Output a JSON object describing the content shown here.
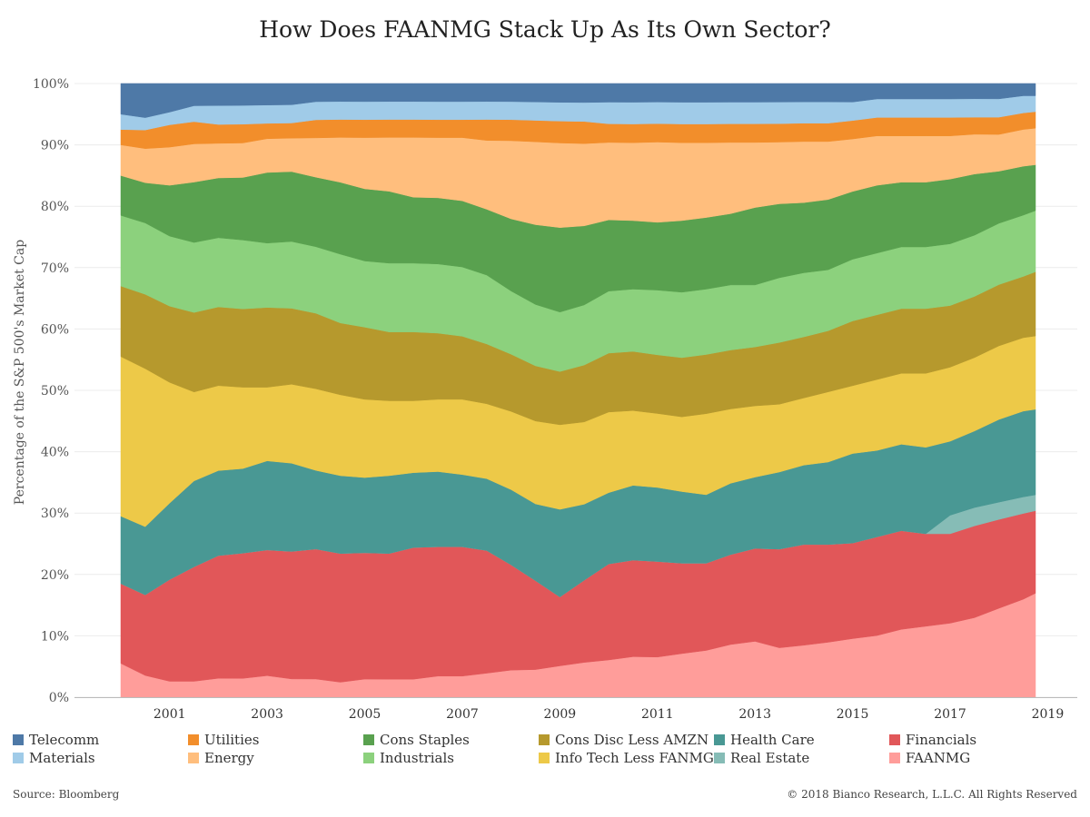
{
  "chart_data": {
    "type": "area",
    "stacked": "percent",
    "title": "How Does FAANMG Stack Up As Its Own Sector?",
    "ylabel": "Percentage of the S&P 500's Market Cap",
    "xlabel": "",
    "ylim": [
      0,
      100
    ],
    "y_ticks": [
      "0%",
      "10%",
      "20%",
      "30%",
      "40%",
      "50%",
      "60%",
      "70%",
      "80%",
      "90%",
      "100%"
    ],
    "x_ticks": [
      "2001",
      "2003",
      "2005",
      "2007",
      "2009",
      "2011",
      "2013",
      "2015",
      "2017",
      "2019"
    ],
    "xlim": [
      2000.0,
      2019.0
    ],
    "grid": true,
    "legend_position": "bottom",
    "x": [
      2000.0,
      2000.5,
      2001.0,
      2001.5,
      2002.0,
      2002.5,
      2003.0,
      2003.5,
      2004.0,
      2004.5,
      2005.0,
      2005.5,
      2006.0,
      2006.5,
      2007.0,
      2007.5,
      2008.0,
      2008.5,
      2009.0,
      2009.5,
      2010.0,
      2010.5,
      2011.0,
      2011.5,
      2012.0,
      2012.5,
      2013.0,
      2013.5,
      2014.0,
      2014.5,
      2015.0,
      2015.5,
      2016.0,
      2016.5,
      2017.0,
      2017.5,
      2018.0,
      2018.5,
      2018.75
    ],
    "series": [
      {
        "name": "FAANMG",
        "color": "#ff9d9a",
        "values": [
          5.5,
          3.5,
          2.5,
          2.5,
          3.0,
          3.0,
          3.5,
          3.0,
          3.0,
          2.5,
          3.0,
          3.0,
          3.0,
          3.5,
          3.5,
          4.0,
          4.5,
          4.5,
          5.0,
          5.5,
          6.0,
          6.5,
          6.5,
          7.0,
          7.5,
          8.5,
          9.0,
          8.0,
          8.5,
          9.0,
          9.5,
          10.0,
          11.0,
          11.5,
          12.0,
          13.0,
          14.5,
          16.0,
          17.0
        ]
      },
      {
        "name": "Financials",
        "color": "#e15759",
        "values": [
          13.0,
          13.0,
          16.0,
          18.0,
          19.5,
          20.0,
          20.5,
          21.0,
          21.5,
          21.5,
          21.0,
          21.0,
          22.0,
          21.5,
          21.5,
          20.5,
          17.5,
          14.5,
          11.0,
          13.0,
          15.5,
          15.5,
          15.5,
          14.5,
          14.0,
          14.5,
          15.0,
          16.0,
          16.5,
          16.0,
          15.5,
          16.0,
          16.0,
          15.0,
          14.5,
          15.0,
          14.5,
          14.0,
          13.5
        ]
      },
      {
        "name": "Real Estate",
        "color": "#86bcb6",
        "values": [
          0.0,
          0.0,
          0.0,
          0.0,
          0.0,
          0.0,
          0.0,
          0.0,
          0.0,
          0.0,
          0.0,
          0.0,
          0.0,
          0.0,
          0.0,
          0.0,
          0.0,
          0.0,
          0.0,
          0.0,
          0.0,
          0.0,
          0.0,
          0.0,
          0.0,
          0.0,
          0.0,
          0.0,
          0.0,
          0.0,
          0.0,
          0.0,
          0.0,
          0.0,
          3.0,
          3.0,
          2.8,
          2.7,
          2.6
        ]
      },
      {
        "name": "Health Care",
        "color": "#499894",
        "values": [
          11.0,
          11.0,
          12.0,
          13.5,
          13.5,
          13.5,
          14.5,
          14.5,
          13.0,
          13.0,
          12.5,
          13.0,
          12.5,
          12.5,
          12.0,
          12.0,
          12.5,
          12.5,
          14.0,
          12.0,
          11.5,
          12.0,
          12.0,
          11.5,
          11.0,
          11.5,
          11.5,
          12.5,
          13.0,
          13.5,
          14.5,
          14.0,
          14.0,
          14.0,
          12.0,
          12.5,
          13.5,
          14.0,
          14.0
        ]
      },
      {
        "name": "Info Tech Less FANMG",
        "color": "#edc948",
        "values": [
          26.0,
          25.5,
          19.0,
          14.0,
          13.5,
          13.0,
          12.0,
          13.0,
          13.5,
          13.5,
          13.0,
          12.5,
          12.0,
          12.0,
          12.5,
          12.5,
          13.0,
          13.5,
          13.5,
          13.0,
          13.0,
          12.0,
          12.0,
          12.0,
          13.0,
          12.0,
          11.5,
          11.0,
          11.0,
          11.5,
          11.0,
          11.5,
          11.5,
          12.0,
          12.0,
          12.0,
          12.0,
          12.0,
          12.0
        ]
      },
      {
        "name": "Cons Disc Less AMZN",
        "color": "#b6992d",
        "values": [
          11.5,
          12.0,
          12.0,
          12.5,
          12.5,
          12.5,
          13.0,
          12.5,
          12.5,
          12.0,
          12.0,
          11.5,
          11.5,
          11.0,
          10.5,
          10.0,
          9.5,
          9.0,
          8.5,
          9.0,
          9.5,
          9.5,
          9.5,
          9.5,
          9.5,
          9.5,
          9.5,
          10.0,
          10.0,
          10.0,
          10.5,
          10.5,
          10.5,
          10.5,
          10.0,
          10.0,
          10.0,
          10.0,
          10.5
        ]
      },
      {
        "name": "Industrials",
        "color": "#8cd17d",
        "values": [
          11.5,
          11.5,
          11.0,
          11.0,
          11.0,
          11.0,
          10.5,
          11.0,
          11.0,
          11.5,
          11.0,
          11.5,
          11.5,
          11.5,
          11.5,
          11.5,
          10.5,
          10.0,
          9.5,
          9.5,
          10.0,
          10.0,
          10.5,
          10.5,
          10.5,
          10.5,
          10.0,
          10.5,
          10.5,
          10.0,
          10.0,
          10.0,
          10.0,
          10.0,
          10.0,
          10.0,
          10.0,
          10.0,
          10.0
        ]
      },
      {
        "name": "Cons Staples",
        "color": "#59a14f",
        "values": [
          6.5,
          6.5,
          8.0,
          9.5,
          9.5,
          10.0,
          11.5,
          11.5,
          11.5,
          12.0,
          12.0,
          12.0,
          11.0,
          11.0,
          11.0,
          11.0,
          12.0,
          13.0,
          13.5,
          12.5,
          11.5,
          11.0,
          11.0,
          11.5,
          11.5,
          11.5,
          12.5,
          12.0,
          11.5,
          11.5,
          11.0,
          11.0,
          10.5,
          10.5,
          10.5,
          10.0,
          8.5,
          8.0,
          7.5
        ]
      },
      {
        "name": "Energy",
        "color": "#ffbe7d",
        "values": [
          5.0,
          5.5,
          6.0,
          6.0,
          5.5,
          5.5,
          5.5,
          5.5,
          6.5,
          7.5,
          8.5,
          9.0,
          10.0,
          10.0,
          10.5,
          11.5,
          13.0,
          13.5,
          13.5,
          13.0,
          12.5,
          12.5,
          13.0,
          12.5,
          12.0,
          11.5,
          10.5,
          10.0,
          10.0,
          9.5,
          8.5,
          8.0,
          7.5,
          7.5,
          7.0,
          6.5,
          6.0,
          6.0,
          6.0
        ]
      },
      {
        "name": "Utilities",
        "color": "#f28e2b",
        "values": [
          2.5,
          3.0,
          3.5,
          3.5,
          3.0,
          3.0,
          2.5,
          2.5,
          3.0,
          3.0,
          3.0,
          3.0,
          3.0,
          3.0,
          3.0,
          3.5,
          3.5,
          3.5,
          3.5,
          3.5,
          3.0,
          3.0,
          3.0,
          3.0,
          3.0,
          3.0,
          3.0,
          3.0,
          3.0,
          3.0,
          3.0,
          3.0,
          3.0,
          3.0,
          3.0,
          2.8,
          2.8,
          2.7,
          2.7
        ]
      },
      {
        "name": "Materials",
        "color": "#a0cbe8",
        "values": [
          2.5,
          2.0,
          2.0,
          2.5,
          3.0,
          3.0,
          3.0,
          3.0,
          3.0,
          3.0,
          3.0,
          3.0,
          3.0,
          3.0,
          3.0,
          3.0,
          3.0,
          3.0,
          3.0,
          3.0,
          3.5,
          3.5,
          3.5,
          3.5,
          3.5,
          3.5,
          3.5,
          3.5,
          3.5,
          3.5,
          3.0,
          3.0,
          3.0,
          3.0,
          3.0,
          3.0,
          3.0,
          2.8,
          2.6
        ]
      },
      {
        "name": "Telecomm",
        "color": "#4e79a7",
        "values": [
          5.0,
          5.5,
          4.5,
          3.5,
          3.5,
          3.5,
          3.5,
          3.5,
          3.0,
          3.0,
          3.0,
          3.0,
          3.0,
          3.0,
          3.0,
          3.0,
          3.0,
          3.0,
          3.0,
          3.0,
          3.0,
          3.0,
          3.0,
          3.0,
          3.0,
          3.0,
          3.0,
          3.0,
          3.0,
          3.0,
          3.0,
          2.5,
          2.5,
          2.5,
          2.5,
          2.5,
          2.5,
          2.0,
          2.0
        ]
      }
    ]
  },
  "legend": {
    "row1": [
      {
        "label": "Telecomm",
        "color": "#4e79a7"
      },
      {
        "label": "Utilities",
        "color": "#f28e2b"
      },
      {
        "label": "Cons Staples",
        "color": "#59a14f"
      },
      {
        "label": "Cons Disc Less AMZN",
        "color": "#b6992d"
      },
      {
        "label": "Health Care",
        "color": "#499894"
      },
      {
        "label": "Financials",
        "color": "#e15759"
      }
    ],
    "row2": [
      {
        "label": "Materials",
        "color": "#a0cbe8"
      },
      {
        "label": "Energy",
        "color": "#ffbe7d"
      },
      {
        "label": "Industrials",
        "color": "#8cd17d"
      },
      {
        "label": "Info Tech Less FANMG",
        "color": "#edc948"
      },
      {
        "label": "Real Estate",
        "color": "#86bcb6"
      },
      {
        "label": "FAANMG",
        "color": "#ff9d9a"
      }
    ]
  },
  "footer": {
    "source": "Source: Bloomberg",
    "copyright": "© 2018 Bianco Research, L.L.C. All Rights Reserved"
  }
}
